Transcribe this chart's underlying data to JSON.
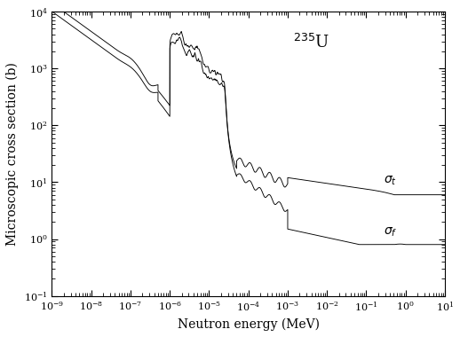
{
  "xlabel": "Neutron energy (MeV)",
  "ylabel": "Microscopic cross section (b)",
  "xlim": [
    1e-09,
    10
  ],
  "ylim": [
    0.1,
    10000.0
  ],
  "background_color": "#ffffff",
  "line_color": "#000000",
  "label_fontsize": 10
}
